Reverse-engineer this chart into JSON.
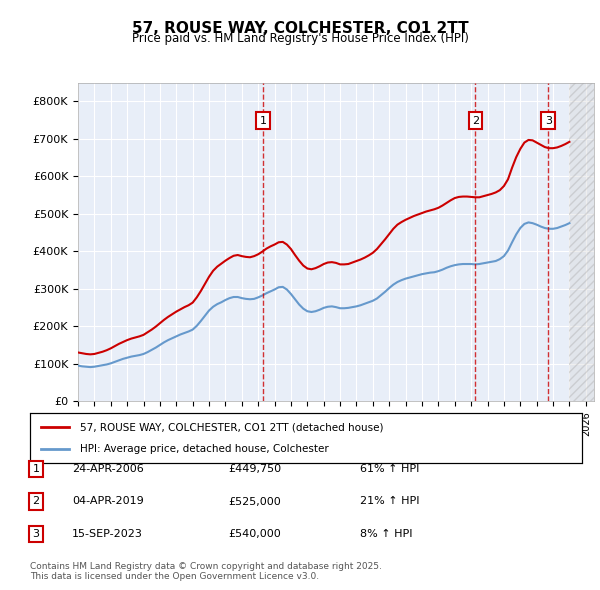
{
  "title": "57, ROUSE WAY, COLCHESTER, CO1 2TT",
  "subtitle": "Price paid vs. HM Land Registry's House Price Index (HPI)",
  "legend_line1": "57, ROUSE WAY, COLCHESTER, CO1 2TT (detached house)",
  "legend_line2": "HPI: Average price, detached house, Colchester",
  "footer": "Contains HM Land Registry data © Crown copyright and database right 2025.\nThis data is licensed under the Open Government Licence v3.0.",
  "sale_color": "#cc0000",
  "hpi_color": "#6699cc",
  "background_color": "#e8eef8",
  "grid_color": "#ffffff",
  "ylim": [
    0,
    850000
  ],
  "yticks": [
    0,
    100000,
    200000,
    300000,
    400000,
    500000,
    600000,
    700000,
    800000
  ],
  "xlim_start": 1995.0,
  "xlim_end": 2026.5,
  "sale_dates": [
    2006.31,
    2019.26,
    2023.71
  ],
  "sale_prices": [
    449750,
    525000,
    540000
  ],
  "sale_labels": [
    "1",
    "2",
    "3"
  ],
  "sale_info": [
    {
      "num": "1",
      "date": "24-APR-2006",
      "price": "£449,750",
      "hpi": "61% ↑ HPI"
    },
    {
      "num": "2",
      "date": "04-APR-2019",
      "price": "£525,000",
      "hpi": "21% ↑ HPI"
    },
    {
      "num": "3",
      "date": "15-SEP-2023",
      "price": "£540,000",
      "hpi": "8% ↑ HPI"
    }
  ],
  "hpi_years": [
    1995.0,
    1995.25,
    1995.5,
    1995.75,
    1996.0,
    1996.25,
    1996.5,
    1996.75,
    1997.0,
    1997.25,
    1997.5,
    1997.75,
    1998.0,
    1998.25,
    1998.5,
    1998.75,
    1999.0,
    1999.25,
    1999.5,
    1999.75,
    2000.0,
    2000.25,
    2000.5,
    2000.75,
    2001.0,
    2001.25,
    2001.5,
    2001.75,
    2002.0,
    2002.25,
    2002.5,
    2002.75,
    2003.0,
    2003.25,
    2003.5,
    2003.75,
    2004.0,
    2004.25,
    2004.5,
    2004.75,
    2005.0,
    2005.25,
    2005.5,
    2005.75,
    2006.0,
    2006.25,
    2006.5,
    2006.75,
    2007.0,
    2007.25,
    2007.5,
    2007.75,
    2008.0,
    2008.25,
    2008.5,
    2008.75,
    2009.0,
    2009.25,
    2009.5,
    2009.75,
    2010.0,
    2010.25,
    2010.5,
    2010.75,
    2011.0,
    2011.25,
    2011.5,
    2011.75,
    2012.0,
    2012.25,
    2012.5,
    2012.75,
    2013.0,
    2013.25,
    2013.5,
    2013.75,
    2014.0,
    2014.25,
    2014.5,
    2014.75,
    2015.0,
    2015.25,
    2015.5,
    2015.75,
    2016.0,
    2016.25,
    2016.5,
    2016.75,
    2017.0,
    2017.25,
    2017.5,
    2017.75,
    2018.0,
    2018.25,
    2018.5,
    2018.75,
    2019.0,
    2019.25,
    2019.5,
    2019.75,
    2020.0,
    2020.25,
    2020.5,
    2020.75,
    2021.0,
    2021.25,
    2021.5,
    2021.75,
    2022.0,
    2022.25,
    2022.5,
    2022.75,
    2023.0,
    2023.25,
    2023.5,
    2023.75,
    2024.0,
    2024.25,
    2024.5,
    2024.75,
    2025.0
  ],
  "hpi_values": [
    95000,
    93000,
    92000,
    91000,
    92000,
    94000,
    96000,
    98000,
    101000,
    105000,
    109000,
    113000,
    116000,
    119000,
    121000,
    123000,
    126000,
    131000,
    137000,
    143000,
    150000,
    157000,
    163000,
    168000,
    173000,
    178000,
    182000,
    186000,
    191000,
    201000,
    214000,
    228000,
    242000,
    252000,
    259000,
    264000,
    270000,
    275000,
    278000,
    278000,
    275000,
    273000,
    272000,
    273000,
    277000,
    282000,
    288000,
    293000,
    298000,
    304000,
    305000,
    298000,
    286000,
    272000,
    258000,
    247000,
    240000,
    238000,
    240000,
    244000,
    249000,
    252000,
    253000,
    251000,
    248000,
    248000,
    249000,
    251000,
    253000,
    256000,
    260000,
    264000,
    268000,
    274000,
    283000,
    292000,
    302000,
    311000,
    318000,
    323000,
    327000,
    330000,
    333000,
    336000,
    339000,
    341000,
    343000,
    344000,
    347000,
    351000,
    356000,
    360000,
    363000,
    365000,
    366000,
    366000,
    366000,
    365000,
    366000,
    368000,
    370000,
    372000,
    374000,
    379000,
    387000,
    402000,
    424000,
    445000,
    462000,
    473000,
    477000,
    475000,
    471000,
    466000,
    462000,
    460000,
    460000,
    462000,
    466000,
    470000,
    475000
  ],
  "property_years": [
    1995.0,
    1995.25,
    1995.5,
    1995.75,
    1996.0,
    1996.25,
    1996.5,
    1996.75,
    1997.0,
    1997.25,
    1997.5,
    1997.75,
    1998.0,
    1998.25,
    1998.5,
    1998.75,
    1999.0,
    1999.25,
    1999.5,
    1999.75,
    2000.0,
    2000.25,
    2000.5,
    2000.75,
    2001.0,
    2001.25,
    2001.5,
    2001.75,
    2002.0,
    2002.25,
    2002.5,
    2002.75,
    2003.0,
    2003.25,
    2003.5,
    2003.75,
    2004.0,
    2004.25,
    2004.5,
    2004.75,
    2005.0,
    2005.25,
    2005.5,
    2005.75,
    2006.0,
    2006.25,
    2006.5,
    2006.75,
    2007.0,
    2007.25,
    2007.5,
    2007.75,
    2008.0,
    2008.25,
    2008.5,
    2008.75,
    2009.0,
    2009.25,
    2009.5,
    2009.75,
    2010.0,
    2010.25,
    2010.5,
    2010.75,
    2011.0,
    2011.25,
    2011.5,
    2011.75,
    2012.0,
    2012.25,
    2012.5,
    2012.75,
    2013.0,
    2013.25,
    2013.5,
    2013.75,
    2014.0,
    2014.25,
    2014.5,
    2014.75,
    2015.0,
    2015.25,
    2015.5,
    2015.75,
    2016.0,
    2016.25,
    2016.5,
    2016.75,
    2017.0,
    2017.25,
    2017.5,
    2017.75,
    2018.0,
    2018.25,
    2018.5,
    2018.75,
    2019.0,
    2019.25,
    2019.5,
    2019.75,
    2020.0,
    2020.25,
    2020.5,
    2020.75,
    2021.0,
    2021.25,
    2021.5,
    2021.75,
    2022.0,
    2022.25,
    2022.5,
    2022.75,
    2023.0,
    2023.25,
    2023.5,
    2023.75,
    2024.0,
    2024.25,
    2024.5,
    2024.75,
    2025.0
  ],
  "property_values": [
    130000,
    128000,
    126000,
    125000,
    126000,
    129000,
    132000,
    136000,
    141000,
    147000,
    153000,
    158000,
    163000,
    167000,
    170000,
    173000,
    177000,
    184000,
    191000,
    199000,
    208000,
    217000,
    225000,
    232000,
    239000,
    245000,
    251000,
    256000,
    263000,
    277000,
    294000,
    313000,
    332000,
    348000,
    359000,
    367000,
    375000,
    382000,
    388000,
    390000,
    387000,
    385000,
    384000,
    387000,
    392000,
    399000,
    407000,
    413000,
    418000,
    424000,
    425000,
    418000,
    406000,
    390000,
    375000,
    362000,
    354000,
    352000,
    355000,
    360000,
    366000,
    370000,
    371000,
    369000,
    365000,
    365000,
    366000,
    370000,
    374000,
    378000,
    383000,
    389000,
    396000,
    406000,
    419000,
    432000,
    446000,
    460000,
    471000,
    478000,
    484000,
    489000,
    494000,
    498000,
    502000,
    506000,
    509000,
    512000,
    516000,
    522000,
    529000,
    536000,
    542000,
    545000,
    546000,
    546000,
    545000,
    544000,
    544000,
    547000,
    550000,
    553000,
    557000,
    563000,
    574000,
    592000,
    623000,
    651000,
    673000,
    690000,
    697000,
    696000,
    690000,
    684000,
    678000,
    675000,
    675000,
    677000,
    681000,
    686000,
    692000
  ]
}
